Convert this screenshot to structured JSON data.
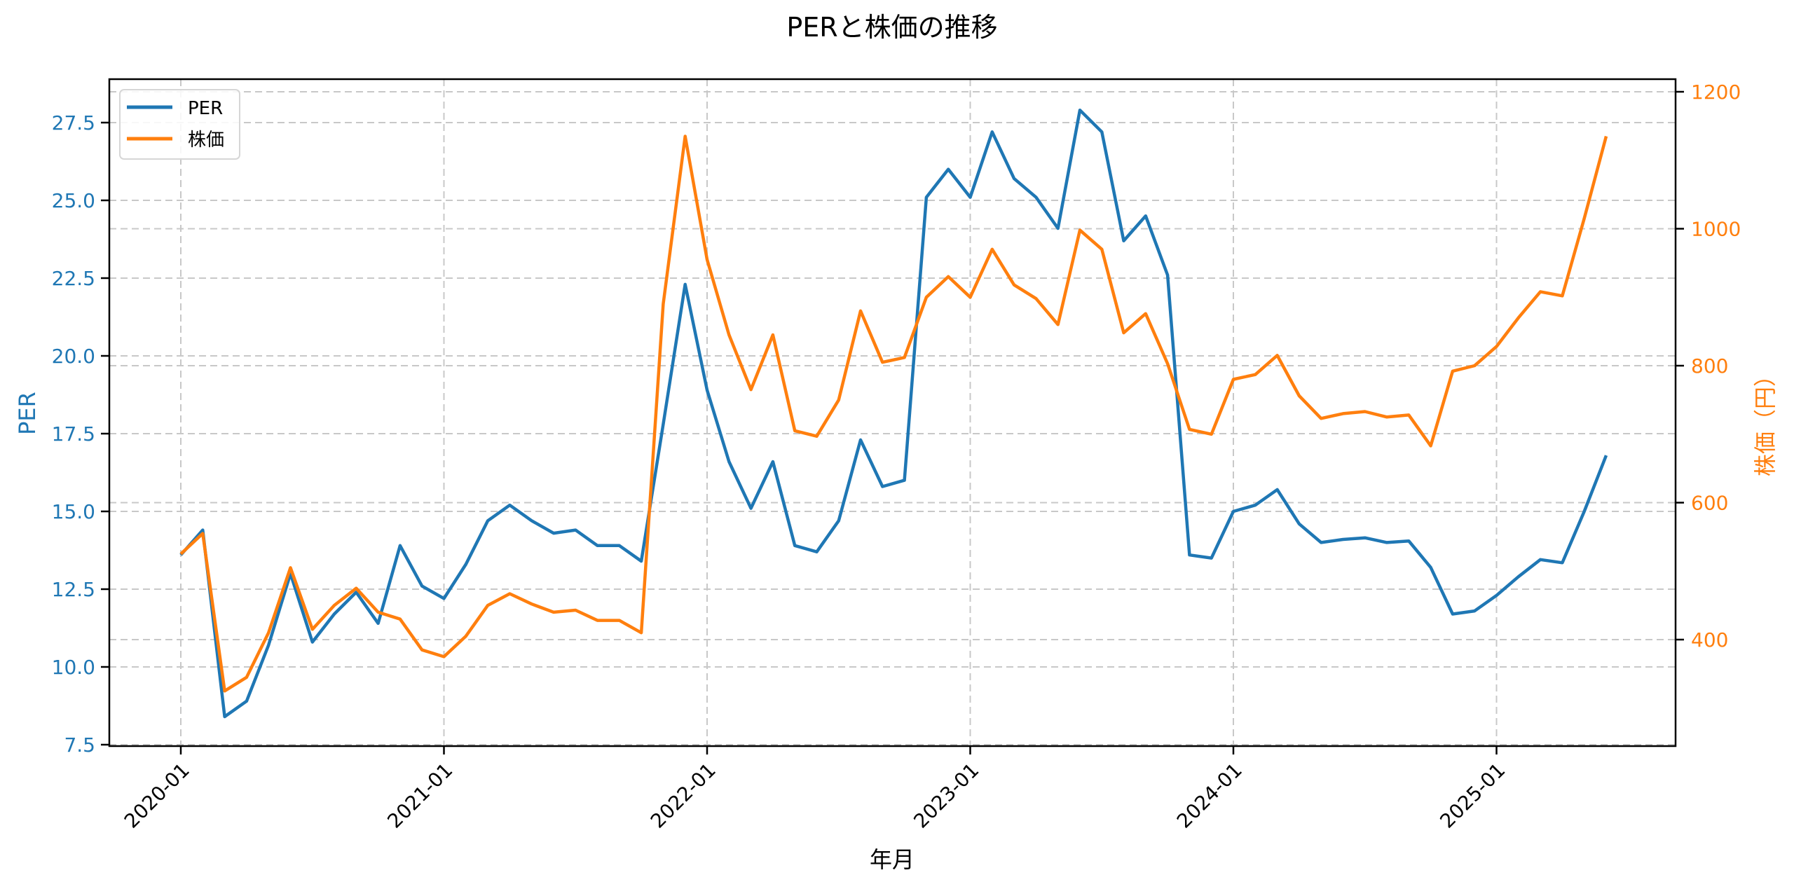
{
  "title": "PERと株価の推移",
  "legend": [
    {
      "label": "PER",
      "color": "#1f77b4"
    },
    {
      "label": "株価",
      "color": "#ff7f0e"
    }
  ],
  "axes": {
    "x_label": "年月",
    "left_label": "PER",
    "right_label": "株価（円）",
    "x_ticks": [
      "2020-01",
      "2021-01",
      "2022-01",
      "2023-01",
      "2024-01",
      "2025-01"
    ],
    "left_ticks": [
      "7.5",
      "10.0",
      "12.5",
      "15.0",
      "17.5",
      "20.0",
      "22.5",
      "25.0",
      "27.5"
    ],
    "right_ticks": [
      "400",
      "600",
      "800",
      "1000",
      "1200"
    ]
  },
  "chart_data": {
    "type": "line",
    "title": "PERと株価の推移",
    "xlabel": "年月",
    "ylabel": "PER",
    "y2label": "株価（円）",
    "ylim": [
      7.3,
      28.8
    ],
    "y2lim": [
      250,
      1215
    ],
    "grid": true,
    "legend_position": "upper left",
    "x": [
      "2020-01",
      "2020-02",
      "2020-03",
      "2020-04",
      "2020-05",
      "2020-06",
      "2020-07",
      "2020-08",
      "2020-09",
      "2020-10",
      "2020-11",
      "2020-12",
      "2021-01",
      "2021-02",
      "2021-03",
      "2021-04",
      "2021-05",
      "2021-06",
      "2021-07",
      "2021-08",
      "2021-09",
      "2021-10",
      "2021-11",
      "2021-12",
      "2022-01",
      "2022-02",
      "2022-03",
      "2022-04",
      "2022-05",
      "2022-06",
      "2022-07",
      "2022-08",
      "2022-09",
      "2022-10",
      "2022-11",
      "2022-12",
      "2023-01",
      "2023-02",
      "2023-03",
      "2023-04",
      "2023-05",
      "2023-06",
      "2023-07",
      "2023-08",
      "2023-09",
      "2023-10",
      "2023-11",
      "2023-12",
      "2024-01",
      "2024-02",
      "2024-03",
      "2024-04",
      "2024-05",
      "2024-06",
      "2024-07",
      "2024-08",
      "2024-09",
      "2024-10",
      "2024-11",
      "2024-12",
      "2025-01",
      "2025-02",
      "2025-03",
      "2025-04",
      "2025-05",
      "2025-06"
    ],
    "series": [
      {
        "name": "PER",
        "axis": "left",
        "color": "#1f77b4",
        "values": [
          13.6,
          14.4,
          8.4,
          8.9,
          10.7,
          13.0,
          10.8,
          11.7,
          12.4,
          11.4,
          13.9,
          12.6,
          12.2,
          13.3,
          14.7,
          15.2,
          14.7,
          14.3,
          14.4,
          13.9,
          13.9,
          13.4,
          17.8,
          22.3,
          18.9,
          16.6,
          15.1,
          16.6,
          13.9,
          13.7,
          14.7,
          17.3,
          15.8,
          16.0,
          25.1,
          26.0,
          25.1,
          27.2,
          25.7,
          25.1,
          24.1,
          27.9,
          27.2,
          23.7,
          24.5,
          22.6,
          13.6,
          13.5,
          15.0,
          15.2,
          15.7,
          14.6,
          14.0,
          14.1,
          14.15,
          14.0,
          14.05,
          13.2,
          11.7,
          11.8,
          12.3,
          12.9,
          13.45,
          13.35,
          15.0,
          16.8
        ]
      },
      {
        "name": "株価",
        "axis": "right",
        "color": "#ff7f0e",
        "values": [
          525,
          555,
          325,
          345,
          410,
          505,
          415,
          450,
          475,
          440,
          430,
          385,
          375,
          405,
          450,
          467,
          452,
          440,
          443,
          428,
          428,
          410,
          890,
          1135,
          955,
          845,
          765,
          845,
          705,
          697,
          750,
          880,
          805,
          812,
          900,
          930,
          900,
          970,
          918,
          898,
          860,
          998,
          970,
          848,
          876,
          803,
          707,
          700,
          780,
          787,
          815,
          756,
          723,
          730,
          733,
          725,
          728,
          683,
          792,
          800,
          828,
          870,
          908,
          902,
          1015,
          1135
        ]
      }
    ]
  }
}
